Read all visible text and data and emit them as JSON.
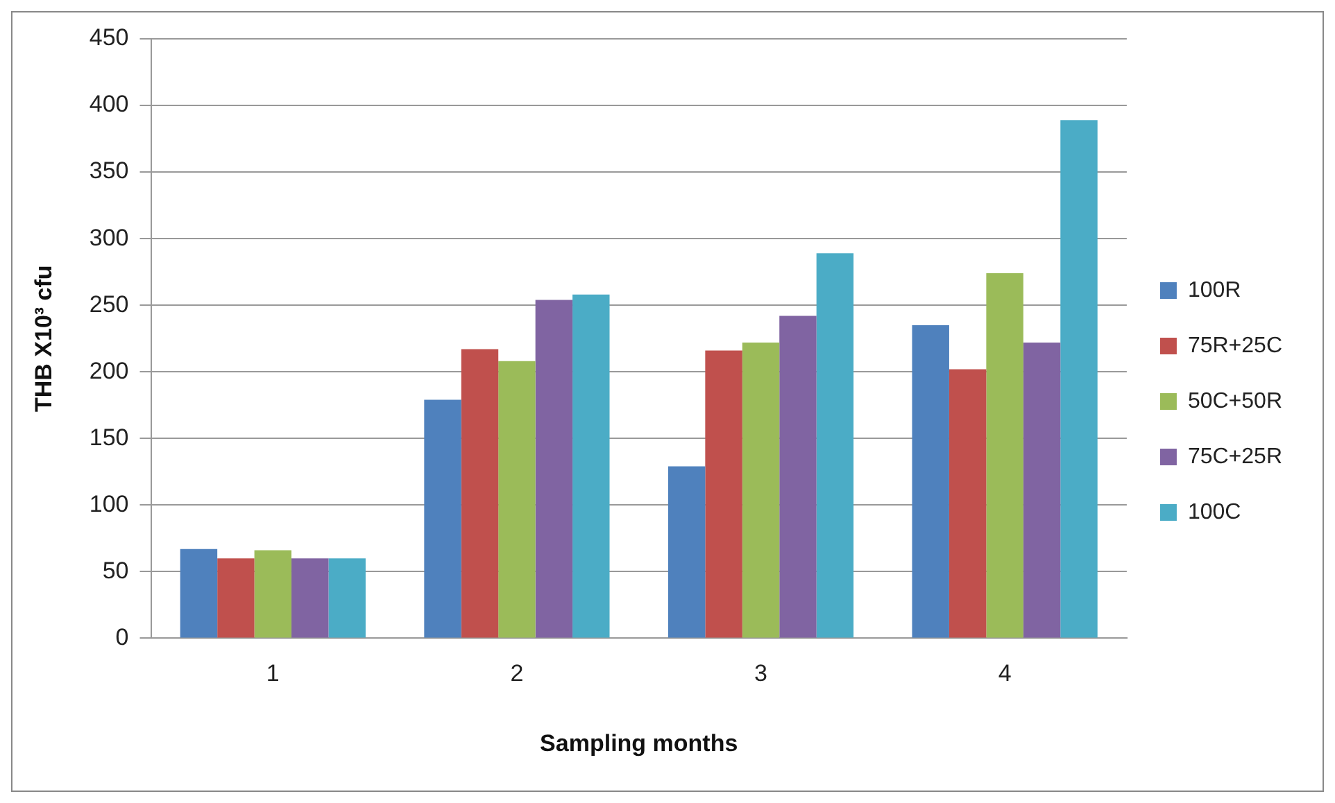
{
  "chart_data": {
    "type": "bar",
    "xlabel": "Sampling months",
    "ylabel": "THB X10³ cfu",
    "categories": [
      "1",
      "2",
      "3",
      "4"
    ],
    "series": [
      {
        "name": "100R",
        "color": "#4f81bd",
        "values": [
          67,
          179,
          129,
          235
        ]
      },
      {
        "name": "75R+25C",
        "color": "#c0504d",
        "values": [
          60,
          217,
          216,
          202
        ]
      },
      {
        "name": "50C+50R",
        "color": "#9bbb59",
        "values": [
          66,
          208,
          222,
          274
        ]
      },
      {
        "name": "75C+25R",
        "color": "#8064a2",
        "values": [
          60,
          254,
          242,
          222
        ]
      },
      {
        "name": "100C",
        "color": "#4bacc6",
        "values": [
          60,
          258,
          289,
          389
        ]
      }
    ],
    "ylim": [
      0,
      450
    ],
    "yticks": [
      0,
      50,
      100,
      150,
      200,
      250,
      300,
      350,
      400,
      450
    ],
    "grid": "y",
    "legend": "right"
  }
}
